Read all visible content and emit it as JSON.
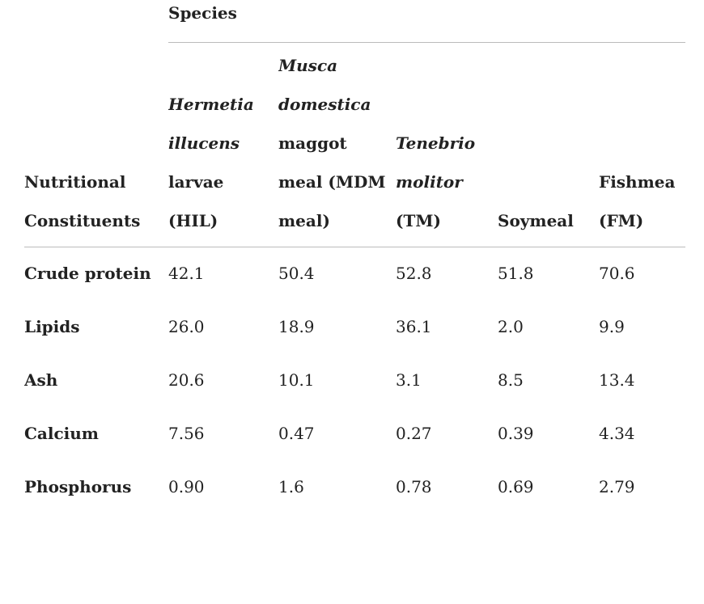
{
  "table": {
    "group_header": "Species",
    "columns": [
      {
        "plain": "Nutritional Constituents"
      },
      {
        "italic": "Hermetia illucens",
        "plain": "larvae (HIL)"
      },
      {
        "italic": "Musca domestica",
        "plain": "maggot meal (MDM meal)"
      },
      {
        "italic": "Tenebrio molitor",
        "plain": "(TM)"
      },
      {
        "plain": "Soymeal"
      },
      {
        "plain": "Fishmea (FM)"
      }
    ],
    "rows": [
      [
        "Crude protein",
        "42.1",
        "50.4",
        "52.8",
        "51.8",
        "70.6"
      ],
      [
        "Lipids",
        "26.0",
        "18.9",
        "36.1",
        "2.0",
        "9.9"
      ],
      [
        "Ash",
        "20.6",
        "10.1",
        "3.1",
        "8.5",
        "13.4"
      ],
      [
        "Calcium",
        "7.56",
        "0.47",
        "0.27",
        "0.39",
        "4.34"
      ],
      [
        "Phosphorus",
        "0.90",
        "1.6",
        "0.78",
        "0.69",
        "2.79"
      ]
    ]
  }
}
